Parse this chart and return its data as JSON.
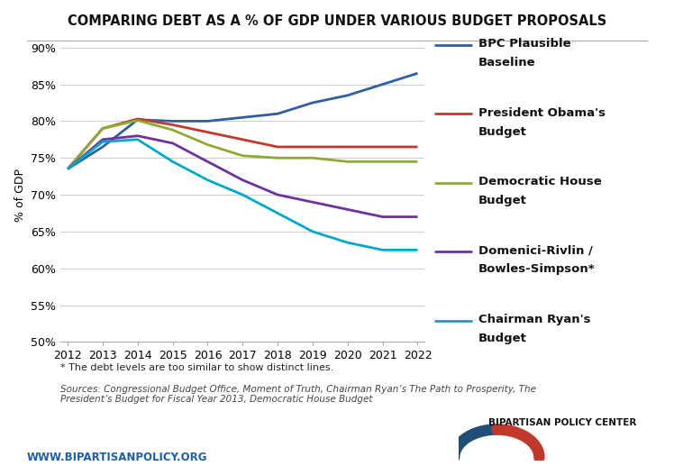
{
  "title": "COMPARING DEBT AS A % OF GDP UNDER VARIOUS BUDGET PROPOSALS",
  "ylabel": "% of GDP",
  "years": [
    2012,
    2013,
    2014,
    2015,
    2016,
    2017,
    2018,
    2019,
    2020,
    2021,
    2022
  ],
  "series": [
    {
      "name": "BPC Plausible\nBaseline",
      "color": "#2e5ea6",
      "values": [
        73.5,
        76.5,
        80.2,
        80.0,
        80.0,
        80.5,
        81.0,
        82.5,
        83.5,
        85.0,
        86.5
      ]
    },
    {
      "name": "President Obama's\nBudget",
      "color": "#c0392b",
      "values": [
        73.5,
        79.0,
        80.3,
        79.5,
        78.5,
        77.5,
        76.5,
        76.5,
        76.5,
        76.5,
        76.5
      ]
    },
    {
      "name": "Democratic House\nBudget",
      "color": "#8faa30",
      "values": [
        73.5,
        79.0,
        80.1,
        78.8,
        76.8,
        75.3,
        75.0,
        75.0,
        74.5,
        74.5,
        74.5
      ]
    },
    {
      "name": "Domenici-Rivlin /\nBowles-Simpson*",
      "color": "#7030a0",
      "values": [
        73.5,
        77.5,
        78.0,
        77.0,
        74.5,
        72.0,
        70.0,
        69.0,
        68.0,
        67.0,
        67.0
      ]
    },
    {
      "name": "Chairman Ryan's\nBudget",
      "color": "#00a8cc",
      "values": [
        73.5,
        77.2,
        77.5,
        74.5,
        72.0,
        70.0,
        67.5,
        65.0,
        63.5,
        62.5,
        62.5
      ]
    }
  ],
  "ylim": [
    50,
    90
  ],
  "yticks": [
    50,
    55,
    60,
    65,
    70,
    75,
    80,
    85,
    90
  ],
  "ytick_labels": [
    "50%",
    "55%",
    "60%",
    "65%",
    "70%",
    "75%",
    "80%",
    "85%",
    "90%"
  ],
  "footnote1": "* The debt levels are too similar to show distinct lines.",
  "footnote2": "Sources: Congressional Budget Office, Moment of Truth, Chairman Ryan’s The Path to Prosperity, The\nPresident’s Budget for Fiscal Year 2013, Democratic House Budget",
  "url": "WWW.BIPARTISANPOLICY.ORG",
  "background_color": "#ffffff",
  "grid_color": "#cccccc",
  "title_fontsize": 10.5,
  "ylabel_fontsize": 9,
  "tick_fontsize": 9,
  "legend_fontsize": 9.5,
  "line_width": 2.0,
  "logo_text": "BIPARTISAN POLICY CENTER",
  "logo_color_blue": "#1f4e79",
  "logo_color_red": "#c0392b"
}
